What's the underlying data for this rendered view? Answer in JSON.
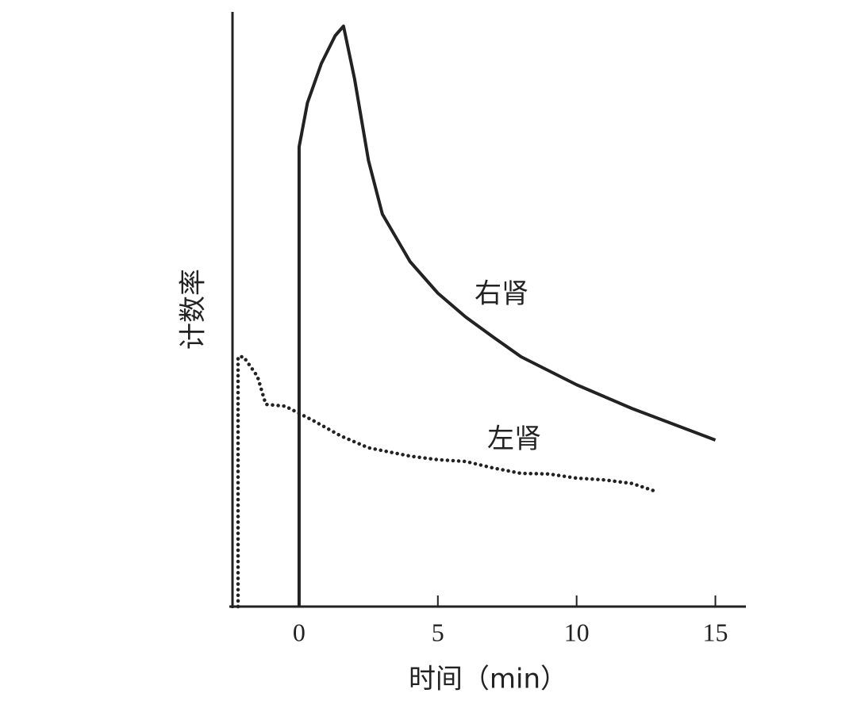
{
  "chart_data": {
    "type": "line",
    "x_label": "时间（min）",
    "y_label": "计数率",
    "xlim": [
      -2.4,
      16.1
    ],
    "xticks": [
      0,
      5,
      10,
      15
    ],
    "ylim": [
      0,
      100
    ],
    "series": [
      {
        "name": "右肾",
        "color": "#222222",
        "style": "solid",
        "x": [
          0,
          0,
          0.3,
          0.8,
          1.3,
          1.6,
          2,
          2.5,
          3,
          4,
          5,
          6,
          7,
          8,
          10,
          12,
          15
        ],
        "values": [
          0,
          77.3,
          84.7,
          91.3,
          96,
          97.6,
          88.7,
          75,
          66,
          58,
          52.7,
          48.7,
          45.3,
          42,
          37.3,
          33.3,
          28
        ]
      },
      {
        "name": "左肾",
        "color": "#222222",
        "style": "dotted",
        "x": [
          -2.2,
          -2.2,
          -2.0,
          -1.5,
          -1.2,
          -0.5,
          0.5,
          1.5,
          2.5,
          4,
          5,
          6,
          7,
          8,
          9,
          10,
          11,
          12,
          12.9
        ],
        "values": [
          0,
          42,
          42,
          38.7,
          34,
          33.7,
          31.3,
          28.7,
          26.7,
          25.3,
          24.7,
          24.4,
          23.3,
          22.4,
          22.3,
          21.6,
          21.3,
          20.7,
          19.3
        ]
      }
    ]
  }
}
